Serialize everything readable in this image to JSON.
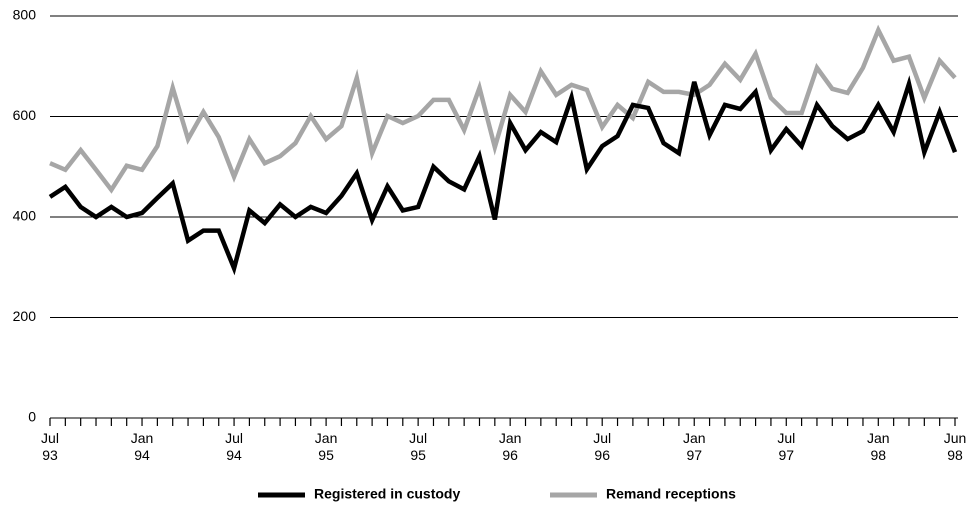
{
  "chart_data": {
    "type": "line",
    "categories": [
      "Jul\n93",
      null,
      null,
      null,
      null,
      null,
      "Jan\n94",
      null,
      null,
      null,
      null,
      null,
      "Jul\n94",
      null,
      null,
      null,
      null,
      null,
      "Jan\n95",
      null,
      null,
      null,
      null,
      null,
      "Jul\n95",
      null,
      null,
      null,
      null,
      null,
      "Jan\n96",
      null,
      null,
      null,
      null,
      null,
      "Jul\n96",
      null,
      null,
      null,
      null,
      null,
      "Jan\n97",
      null,
      null,
      null,
      null,
      null,
      "Jul\n97",
      null,
      null,
      null,
      null,
      null,
      "Jan\n98",
      null,
      null,
      null,
      null,
      "Jun\n98"
    ],
    "series": [
      {
        "name": "Registered in custody",
        "color": "#000000",
        "values": [
          440,
          460,
          420,
          400,
          420,
          400,
          408,
          438,
          467,
          353,
          373,
          373,
          298,
          413,
          388,
          425,
          400,
          420,
          408,
          442,
          487,
          394,
          461,
          413,
          420,
          500,
          471,
          455,
          521,
          395,
          587,
          533,
          569,
          549,
          638,
          495,
          541,
          561,
          623,
          617,
          547,
          527,
          669,
          563,
          623,
          615,
          649,
          533,
          575,
          541,
          623,
          581,
          555,
          571,
          623,
          569,
          665,
          529,
          609,
          529
        ]
      },
      {
        "name": "Remand receptions",
        "color": "#a6a6a6",
        "values": [
          507,
          494,
          533,
          494,
          454,
          502,
          494,
          541,
          657,
          555,
          609,
          559,
          480,
          555,
          507,
          521,
          547,
          601,
          555,
          581,
          677,
          527,
          601,
          587,
          601,
          633,
          633,
          573,
          657,
          539,
          643,
          609,
          690,
          643,
          663,
          653,
          579,
          623,
          597,
          669,
          649,
          649,
          643,
          663,
          705,
          673,
          725,
          637,
          607,
          607,
          697,
          655,
          647,
          697,
          772,
          711,
          719,
          637,
          711,
          677
        ]
      }
    ],
    "ylim": [
      0,
      800
    ],
    "yticks": [
      0,
      200,
      400,
      600,
      800
    ],
    "grid": true,
    "legend": "bottom"
  }
}
